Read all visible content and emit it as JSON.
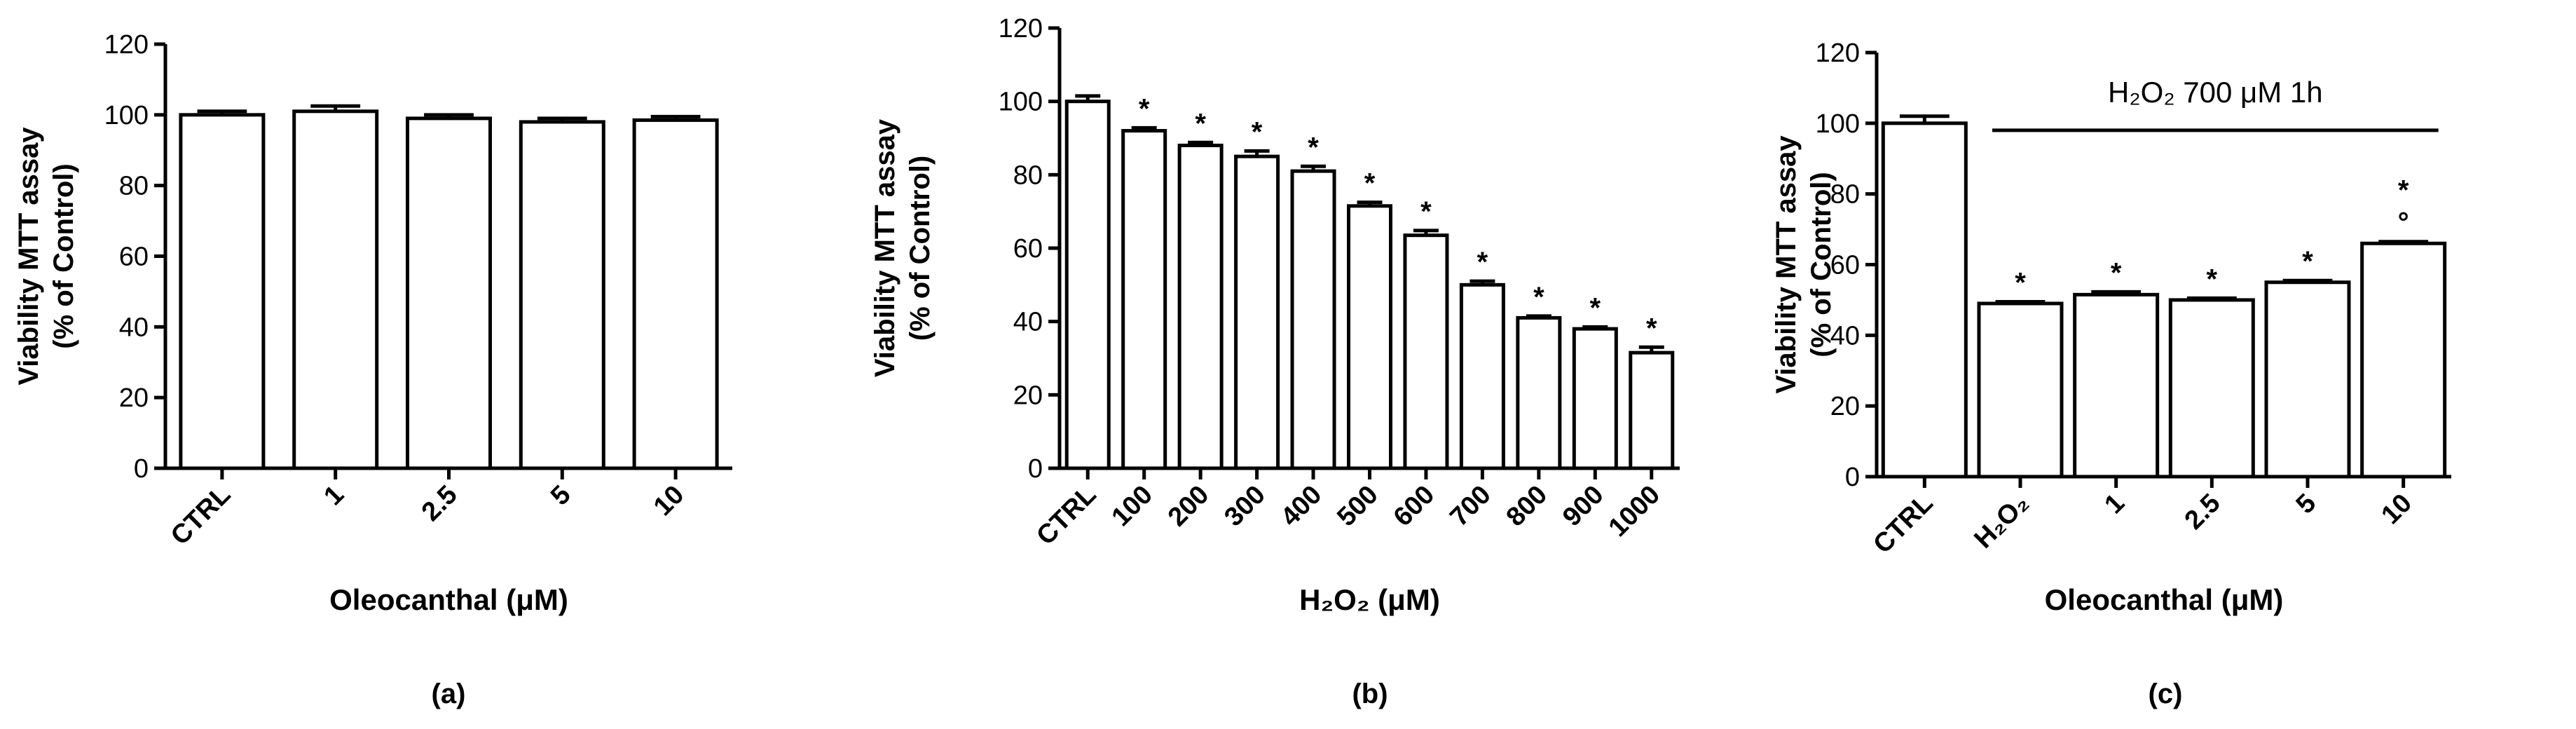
{
  "colors": {
    "bar_fill": "#ffffff",
    "bar_stroke": "#000000",
    "axis": "#000000"
  },
  "chart_data": [
    {
      "type": "bar",
      "panel_label": "(a)",
      "ylabel_line1": "Viability MTT assay",
      "ylabel_line2": "(% of Control)",
      "xlabel": "Oleocanthal (μM)",
      "ylim": [
        0,
        120
      ],
      "yticks": [
        "0",
        "20",
        "40",
        "60",
        "80",
        "100",
        "120"
      ],
      "categories": [
        "CTRL",
        "1",
        "2.5",
        "5",
        "10"
      ],
      "values": [
        100,
        101,
        99,
        98,
        98.5
      ],
      "errors": [
        1.0,
        1.5,
        1.0,
        1.0,
        1.0
      ],
      "markers": [
        "",
        "",
        "",
        "",
        ""
      ],
      "grid": false
    },
    {
      "type": "bar",
      "panel_label": "(b)",
      "ylabel_line1": "Viability MTT assay",
      "ylabel_line2": "(% of Control)",
      "xlabel": "H₂O₂ (μM)",
      "ylim": [
        0,
        120
      ],
      "yticks": [
        "0",
        "20",
        "40",
        "60",
        "80",
        "100",
        "120"
      ],
      "categories": [
        "CTRL",
        "100",
        "200",
        "300",
        "400",
        "500",
        "600",
        "700",
        "800",
        "900",
        "1000"
      ],
      "values": [
        100,
        92,
        88,
        85,
        81,
        71.5,
        63.5,
        50,
        41,
        38,
        31.5
      ],
      "errors": [
        1.5,
        0.8,
        0.8,
        1.5,
        1.3,
        1.0,
        1.3,
        1.0,
        0.5,
        0.5,
        1.5
      ],
      "markers": [
        "",
        "*",
        "*",
        "*",
        "*",
        "*",
        "*",
        "*",
        "*",
        "*",
        "*"
      ],
      "grid": false
    },
    {
      "type": "bar",
      "panel_label": "(c)",
      "ylabel_line1": "Viability MTT assay",
      "ylabel_line2": "(% of Control)",
      "xlabel": "Oleocanthal (μM)",
      "annotation": "H₂O₂ 700 μM 1h",
      "ylim": [
        0,
        120
      ],
      "yticks": [
        "0",
        "20",
        "40",
        "60",
        "80",
        "100",
        "120"
      ],
      "categories": [
        "CTRL",
        "H₂O₂",
        "1",
        "2.5",
        "5",
        "10"
      ],
      "values": [
        100,
        49,
        51.5,
        50,
        55,
        66
      ],
      "errors": [
        2.0,
        0.5,
        0.8,
        0.5,
        0.5,
        0.5
      ],
      "markers": [
        "",
        "*",
        "*",
        "*",
        "*",
        "*"
      ],
      "markers2": [
        "",
        "",
        "",
        "",
        "",
        "°"
      ],
      "grid": false
    }
  ]
}
